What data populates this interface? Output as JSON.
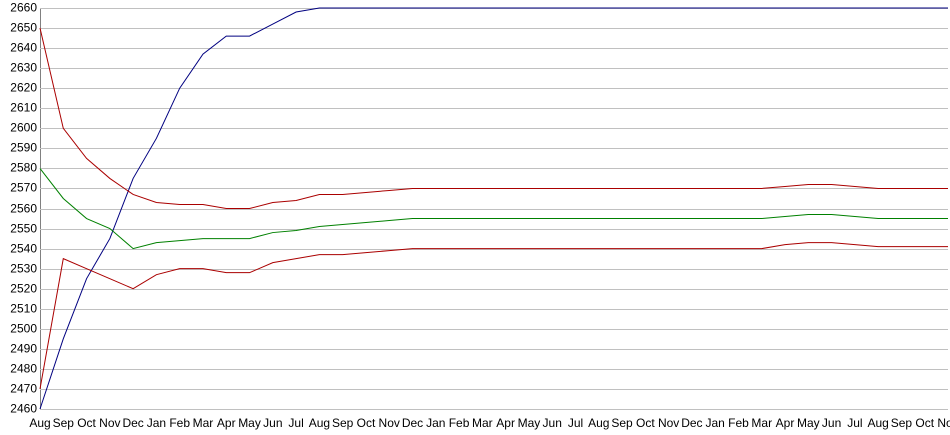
{
  "chart_data": {
    "type": "line",
    "categories": [
      "Aug",
      "Sep",
      "Oct",
      "Nov",
      "Dec",
      "Jan",
      "Feb",
      "Mar",
      "Apr",
      "May",
      "Jun",
      "Jul",
      "Aug",
      "Sep",
      "Oct",
      "Nov",
      "Dec",
      "Jan",
      "Feb",
      "Mar",
      "Apr",
      "May",
      "Jun",
      "Jul",
      "Aug",
      "Sep",
      "Oct",
      "Nov",
      "Dec",
      "Jan",
      "Feb",
      "Mar",
      "Apr",
      "May",
      "Jun",
      "Jul",
      "Aug",
      "Sep",
      "Oct",
      "Nov"
    ],
    "series": [
      {
        "color": "#000080",
        "values": [
          2460,
          2495,
          2525,
          2545,
          2575,
          2595,
          2620,
          2637,
          2646,
          2646,
          2652,
          2658,
          2660,
          2660,
          2660,
          2660,
          2660,
          2660,
          2660,
          2660,
          2660,
          2660,
          2660,
          2660,
          2660,
          2660,
          2660,
          2660,
          2660,
          2660,
          2660,
          2660,
          2660,
          2660,
          2660,
          2660,
          2660,
          2660,
          2660,
          2660
        ]
      },
      {
        "color": "#aa0000",
        "values": [
          2650,
          2600,
          2585,
          2575,
          2567,
          2563,
          2562,
          2562,
          2560,
          2560,
          2563,
          2564,
          2567,
          2567,
          2568,
          2569,
          2570,
          2570,
          2570,
          2570,
          2570,
          2570,
          2570,
          2570,
          2570,
          2570,
          2570,
          2570,
          2570,
          2570,
          2570,
          2570,
          2571,
          2572,
          2572,
          2571,
          2570,
          2570,
          2570,
          2570
        ]
      },
      {
        "color": "#008000",
        "values": [
          2580,
          2565,
          2555,
          2550,
          2540,
          2543,
          2544,
          2545,
          2545,
          2545,
          2548,
          2549,
          2551,
          2552,
          2553,
          2554,
          2555,
          2555,
          2555,
          2555,
          2555,
          2555,
          2555,
          2555,
          2555,
          2555,
          2555,
          2555,
          2555,
          2555,
          2555,
          2555,
          2556,
          2557,
          2557,
          2556,
          2555,
          2555,
          2555,
          2555
        ]
      },
      {
        "color": "#aa0000",
        "values": [
          2470,
          2535,
          2530,
          2525,
          2520,
          2527,
          2530,
          2530,
          2528,
          2528,
          2533,
          2535,
          2537,
          2537,
          2538,
          2539,
          2540,
          2540,
          2540,
          2540,
          2540,
          2540,
          2540,
          2540,
          2540,
          2540,
          2540,
          2540,
          2540,
          2540,
          2540,
          2540,
          2542,
          2543,
          2543,
          2542,
          2541,
          2541,
          2541,
          2541
        ]
      }
    ],
    "ylim": [
      2460,
      2660
    ],
    "yticks": [
      2460,
      2470,
      2480,
      2490,
      2500,
      2510,
      2520,
      2530,
      2540,
      2550,
      2560,
      2570,
      2580,
      2590,
      2600,
      2610,
      2620,
      2630,
      2640,
      2650,
      2660
    ],
    "grid": true
  }
}
